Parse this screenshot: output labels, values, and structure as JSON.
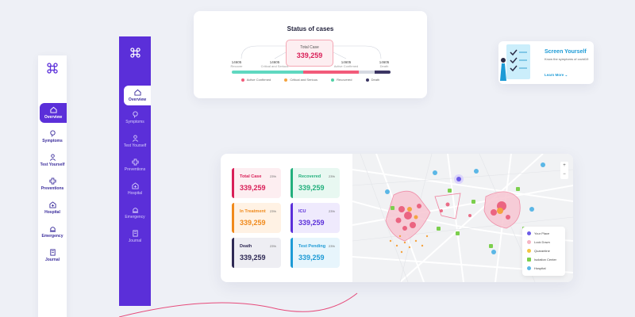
{
  "sidebar_white": {
    "items": [
      {
        "label": "Overview",
        "icon": "home-icon",
        "active": true
      },
      {
        "label": "Symptoms",
        "icon": "head-icon"
      },
      {
        "label": "Test Yourself",
        "icon": "person-icon"
      },
      {
        "label": "Preventions",
        "icon": "cross-icon"
      },
      {
        "label": "Hospital",
        "icon": "hospital-icon"
      },
      {
        "label": "Emergency",
        "icon": "siren-icon"
      },
      {
        "label": "Journal",
        "icon": "book-icon"
      }
    ]
  },
  "sidebar_purple": {
    "items": [
      {
        "label": "Overview",
        "icon": "home-icon",
        "active": true
      },
      {
        "label": "Symptoms",
        "icon": "head-icon"
      },
      {
        "label": "Test Yourself",
        "icon": "person-icon"
      },
      {
        "label": "Preventions",
        "icon": "cross-icon"
      },
      {
        "label": "Hospital",
        "icon": "hospital-icon"
      },
      {
        "label": "Emergency",
        "icon": "siren-icon"
      },
      {
        "label": "Journal",
        "icon": "book-icon"
      }
    ]
  },
  "status": {
    "title": "Status of cases",
    "total_label": "Total Case",
    "total_value": "339,259",
    "nodes": [
      {
        "value": "14605",
        "label": "Recover"
      },
      {
        "value": "14605",
        "label": "Critical and Serious"
      },
      {
        "value": "14605",
        "label": "Active Confirmed"
      },
      {
        "value": "14605",
        "label": "Death"
      }
    ],
    "legend": [
      {
        "label": "Active Confirmed",
        "color": "#f25b7a"
      },
      {
        "label": "Critical and Serious",
        "color": "#f4a340"
      },
      {
        "label": "Recovered",
        "color": "#4fd1a5"
      },
      {
        "label": "Death",
        "color": "#3b3563"
      }
    ]
  },
  "screen": {
    "title": "Screen Yourself",
    "text": "Know the symptoms of covid19",
    "link": "Learn More"
  },
  "stats": [
    {
      "label": "Total Case",
      "pct": "23%",
      "value": "339,259",
      "color": "#d91f58",
      "bg": "#fdeef1"
    },
    {
      "label": "Recovered",
      "pct": "23%",
      "value": "339,259",
      "color": "#23b07d",
      "bg": "#e8f8f1"
    },
    {
      "label": "In Treatment",
      "pct": "23%",
      "value": "339,259",
      "color": "#f08a1c",
      "bg": "#fff2e4"
    },
    {
      "label": "ICU",
      "pct": "23%",
      "value": "339,259",
      "color": "#5b2fd9",
      "bg": "#efeafd"
    },
    {
      "label": "Death",
      "pct": "23%",
      "value": "339,259",
      "color": "#2f2a55",
      "bg": "#eeeef3"
    },
    {
      "label": "Test Pending",
      "pct": "23%",
      "value": "339,259",
      "color": "#1d9bd6",
      "bg": "#e7f5fc"
    }
  ],
  "map": {
    "legend": [
      {
        "label": "Your Place",
        "color": "#6c5ce7"
      },
      {
        "label": "Lock Down",
        "color": "#f5b5c4"
      },
      {
        "label": "Quarantine",
        "color": "#f4c542"
      },
      {
        "label": "Isolation Center",
        "color": "#7ccf4d"
      },
      {
        "label": "Hospital",
        "color": "#5bb7e6"
      }
    ],
    "zoom_in": "+",
    "zoom_out": "−"
  }
}
